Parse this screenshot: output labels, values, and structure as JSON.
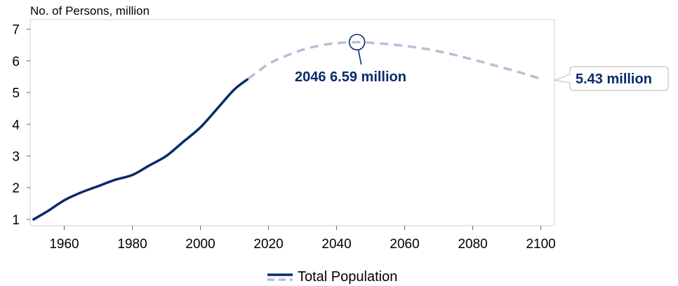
{
  "chart_data": {
    "type": "line",
    "ylabel": "No. of Persons, million",
    "xlim": [
      1950,
      2104
    ],
    "ylim": [
      0.8,
      7.3
    ],
    "x_ticks": [
      "1960",
      "1980",
      "2000",
      "2020",
      "2040",
      "2060",
      "2080",
      "2100"
    ],
    "x_tick_values": [
      1960,
      1980,
      2000,
      2020,
      2040,
      2060,
      2080,
      2100
    ],
    "y_ticks": [
      "1",
      "2",
      "3",
      "4",
      "5",
      "6",
      "7"
    ],
    "y_tick_values": [
      1,
      2,
      3,
      4,
      5,
      6,
      7
    ],
    "grid": false,
    "legend_position": "bottom-center",
    "colors": {
      "historical": "#0a2a6b",
      "projection": "#b4c0d6",
      "annotation": "#0a2a6b"
    },
    "series": [
      {
        "name": "Total Population",
        "style": "solid",
        "x": [
          1951,
          1955,
          1960,
          1965,
          1970,
          1975,
          1980,
          1985,
          1990,
          1995,
          2000,
          2005,
          2010,
          2014
        ],
        "y": [
          1.0,
          1.25,
          1.6,
          1.85,
          2.05,
          2.25,
          2.4,
          2.7,
          3.0,
          3.45,
          3.9,
          4.5,
          5.1,
          5.43
        ]
      },
      {
        "style": "dashed",
        "x": [
          2014,
          2020,
          2025,
          2030,
          2035,
          2040,
          2046,
          2050,
          2055,
          2060,
          2065,
          2070,
          2075,
          2080,
          2085,
          2090,
          2095,
          2100
        ],
        "y": [
          5.43,
          5.9,
          6.15,
          6.35,
          6.48,
          6.56,
          6.59,
          6.57,
          6.53,
          6.47,
          6.4,
          6.3,
          6.18,
          6.04,
          5.9,
          5.75,
          5.6,
          5.43
        ]
      }
    ],
    "annotations": [
      {
        "text": "2046 6.59 million",
        "x": 2046,
        "y": 6.59,
        "marker": "circle"
      },
      {
        "text": "5.43 million",
        "x": 2100,
        "y": 5.43,
        "marker": "callout-box"
      }
    ]
  }
}
